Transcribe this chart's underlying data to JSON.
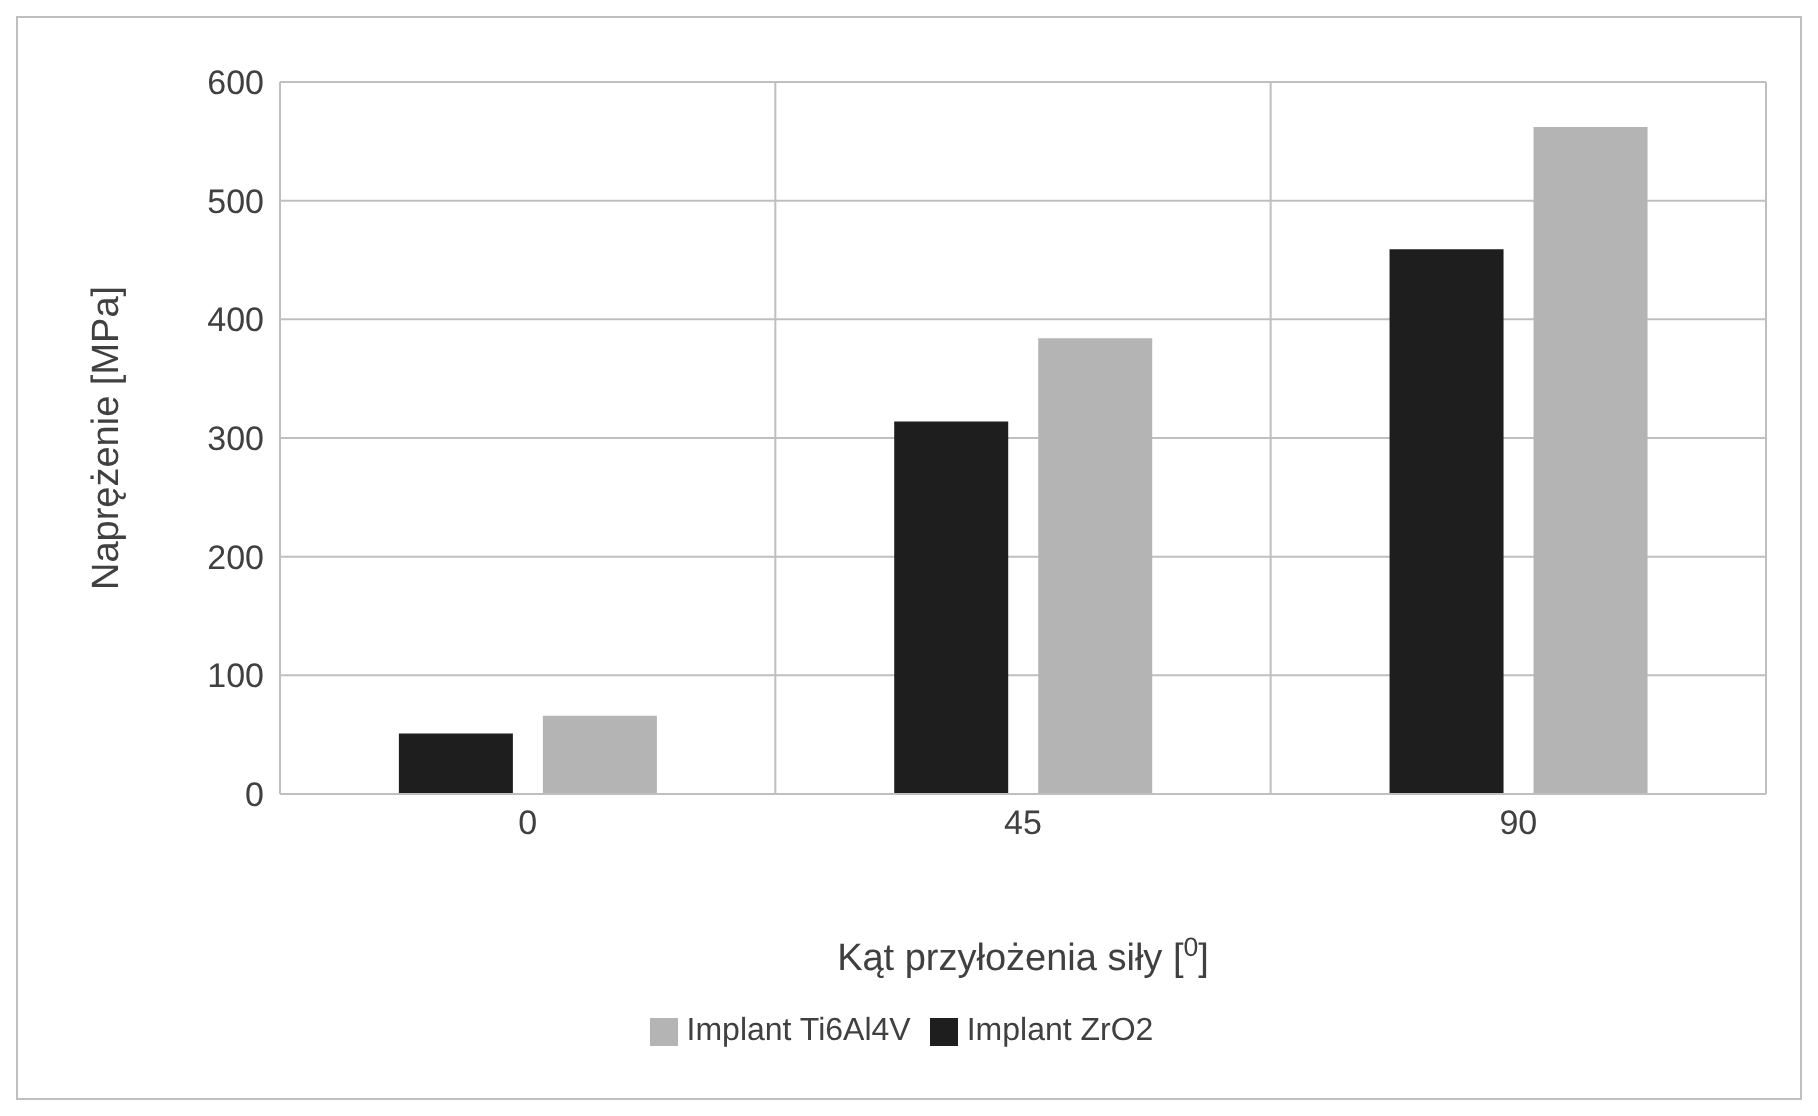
{
  "chart_data": {
    "type": "bar",
    "xlabel": "Kąt przyłożenia siły [$^{0}$]",
    "ylabel": "Naprężenie [MPa]",
    "categories": [
      "0",
      "45",
      "90"
    ],
    "series": [
      {
        "name": "Implant ZrO2",
        "color": "#1e1e1e",
        "values": [
          51,
          314,
          459
        ]
      },
      {
        "name": "Implant Ti6Al4V",
        "color": "#b4b4b4",
        "values": [
          66,
          384,
          562
        ]
      }
    ],
    "ylim": [
      0,
      600
    ],
    "yticks": [
      0,
      100,
      200,
      300,
      400,
      500,
      600
    ],
    "grid": true,
    "legend": "bottom"
  }
}
